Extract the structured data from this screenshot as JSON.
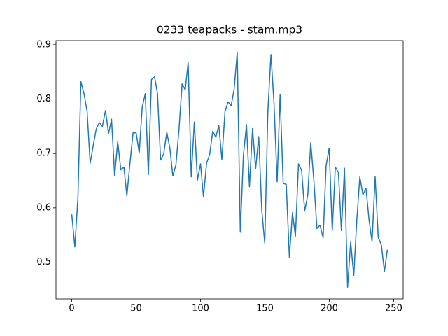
{
  "chart_data": {
    "type": "line",
    "title": "0233 teapacks - stam.mp3",
    "xlim": [
      -12.26,
      257.36
    ],
    "ylim": [
      0.4324,
      0.9076
    ],
    "xticks": [
      0,
      50,
      100,
      150,
      200,
      250
    ],
    "yticks": [
      0.5,
      0.6,
      0.7,
      0.8,
      0.9
    ],
    "series": [
      {
        "color": "#1f77b4",
        "x": [
          0,
          2.4,
          4.8,
          7.1,
          9.5,
          11.9,
          14.3,
          16.7,
          19.0,
          21.4,
          23.8,
          26.2,
          28.6,
          30.9,
          33.3,
          35.7,
          38.1,
          40.5,
          42.8,
          45.2,
          47.6,
          50.0,
          52.4,
          54.7,
          57.1,
          59.5,
          61.9,
          64.3,
          66.6,
          69.0,
          71.4,
          73.8,
          76.2,
          78.5,
          80.9,
          83.3,
          85.7,
          88.1,
          90.4,
          92.8,
          95.2,
          97.6,
          100.0,
          102.3,
          104.7,
          107.1,
          109.5,
          111.9,
          114.2,
          116.6,
          119.0,
          121.4,
          123.8,
          126.1,
          128.5,
          130.9,
          133.3,
          135.7,
          138.0,
          140.4,
          142.8,
          145.2,
          147.6,
          149.9,
          152.3,
          154.7,
          157.1,
          159.5,
          161.8,
          164.2,
          166.6,
          169.0,
          171.4,
          173.7,
          176.1,
          178.5,
          180.9,
          183.3,
          185.6,
          188.0,
          190.4,
          192.8,
          195.2,
          197.5,
          199.9,
          202.3,
          204.7,
          207.1,
          209.4,
          211.8,
          214.2,
          216.6,
          219.0,
          221.3,
          223.7,
          226.1,
          228.5,
          230.9,
          233.2,
          235.6,
          238.0,
          240.4,
          242.8,
          245.1
        ],
        "values": [
          0.588,
          0.528,
          0.62,
          0.832,
          0.81,
          0.778,
          0.682,
          0.715,
          0.745,
          0.757,
          0.75,
          0.779,
          0.737,
          0.763,
          0.659,
          0.722,
          0.67,
          0.675,
          0.622,
          0.682,
          0.738,
          0.738,
          0.701,
          0.785,
          0.81,
          0.661,
          0.836,
          0.841,
          0.81,
          0.688,
          0.699,
          0.739,
          0.71,
          0.659,
          0.679,
          0.745,
          0.828,
          0.817,
          0.867,
          0.657,
          0.758,
          0.651,
          0.681,
          0.62,
          0.682,
          0.698,
          0.741,
          0.73,
          0.752,
          0.689,
          0.777,
          0.795,
          0.788,
          0.818,
          0.886,
          0.555,
          0.697,
          0.753,
          0.639,
          0.746,
          0.672,
          0.731,
          0.595,
          0.535,
          0.777,
          0.882,
          0.791,
          0.648,
          0.808,
          0.645,
          0.643,
          0.509,
          0.591,
          0.548,
          0.681,
          0.669,
          0.594,
          0.624,
          0.72,
          0.651,
          0.562,
          0.568,
          0.545,
          0.677,
          0.71,
          0.558,
          0.675,
          0.665,
          0.558,
          0.673,
          0.454,
          0.537,
          0.475,
          0.575,
          0.657,
          0.624,
          0.636,
          0.577,
          0.538,
          0.657,
          0.546,
          0.532,
          0.483,
          0.523
        ]
      }
    ]
  }
}
